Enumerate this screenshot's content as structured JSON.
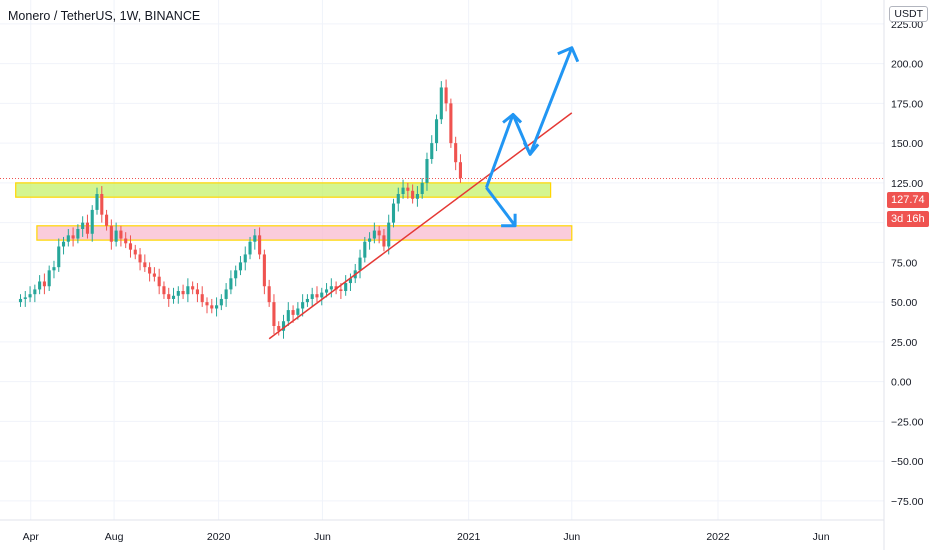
{
  "header": {
    "title": "Monero / TetherUS, 1W, BINANCE",
    "unit": "USDT"
  },
  "price_badge": {
    "price": "127.74",
    "countdown": "3d 16h"
  },
  "colors": {
    "up": "#26a69a",
    "down": "#ef5350",
    "trend": "#e53935",
    "arrows": "#2196f3",
    "zone_green": "#c6f26b",
    "zone_pink": "#f8bbd0",
    "zone_border": "#ffd600",
    "grid": "#f0f3fa"
  },
  "chart_data": {
    "type": "candlestick",
    "ylim": [
      -87,
      240
    ],
    "y_ticks": [
      225,
      200,
      175,
      150,
      125,
      100,
      75,
      50,
      25,
      0,
      -25,
      -50,
      -75
    ],
    "y_tick_labels": [
      "225.00",
      "200.00",
      "175.00",
      "150.00",
      "125.00",
      "100.00",
      "75.00",
      "50.00",
      "25.00",
      "0.00",
      "−25.00",
      "−50.00",
      "−75.00"
    ],
    "x_ticks": [
      {
        "label": "Apr",
        "date": "2019-04-01"
      },
      {
        "label": "Aug",
        "date": "2019-08-01"
      },
      {
        "label": "2020",
        "date": "2020-01-01"
      },
      {
        "label": "Jun",
        "date": "2020-06-01"
      },
      {
        "label": "2021",
        "date": "2021-01-01"
      },
      {
        "label": "Jun",
        "date": "2021-06-01"
      },
      {
        "label": "2022",
        "date": "2022-01-01"
      },
      {
        "label": "Jun",
        "date": "2022-06-01"
      }
    ],
    "x_range": [
      "2019-02-15",
      "2022-09-01"
    ],
    "candles_weekly_close": [
      52,
      53,
      55,
      58,
      63,
      60,
      70,
      72,
      85,
      88,
      92,
      90,
      96,
      100,
      93,
      108,
      118,
      105,
      98,
      88,
      95,
      90,
      87,
      83,
      80,
      75,
      72,
      68,
      66,
      60,
      55,
      52,
      54,
      57,
      55,
      60,
      58,
      55,
      50,
      48,
      46,
      48,
      52,
      58,
      65,
      70,
      75,
      80,
      88,
      92,
      80,
      60,
      50,
      35,
      32,
      38,
      45,
      42,
      46,
      50,
      52,
      55,
      53,
      56,
      58,
      60,
      58,
      57,
      62,
      65,
      70,
      78,
      88,
      90,
      95,
      92,
      85,
      100,
      112,
      118,
      122,
      120,
      115,
      118,
      125,
      140,
      150,
      165,
      185,
      175,
      150,
      138,
      128
    ],
    "support_zones": [
      {
        "low": 116,
        "high": 125,
        "from": "2019-03-10",
        "to": "2021-05-01",
        "fill": "green"
      },
      {
        "low": 89,
        "high": 98,
        "from": "2019-04-10",
        "to": "2021-06-01",
        "fill": "pink"
      }
    ],
    "trendline": [
      {
        "date": "2020-03-15",
        "price": 27
      },
      {
        "date": "2021-06-01",
        "price": 169
      }
    ],
    "current_price": 127.74
  }
}
